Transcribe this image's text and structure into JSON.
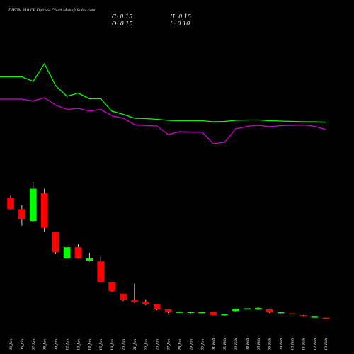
{
  "chart_data": {
    "type": "candlestick",
    "title": "DIXON 310 CE Options Chart MunafaSutra.com",
    "ohlc_readout": {
      "C": "0.15",
      "H": "0.15",
      "O": "0.15",
      "L": "0.10"
    },
    "categories": [
      "03 Jan",
      "06 Jan",
      "07 Jan",
      "08 Jan",
      "09 Jan",
      "12 Jan",
      "13 Jan",
      "14 Jan",
      "15 Jan",
      "19 Jan",
      "20 Jan",
      "21 Jan",
      "22 Jan",
      "23 Jan",
      "27 Jan",
      "28 Jan",
      "29 Jan",
      "30 Jan",
      "01 Feb",
      "02 Feb",
      "03 Feb",
      "04 Feb",
      "05 Feb",
      "06 Feb",
      "09 Feb",
      "10 Feb",
      "11 Feb",
      "12 Feb",
      "13 Feb"
    ],
    "candles": [
      {
        "o": 59.4,
        "h": 60.6,
        "l": 53.8,
        "c": 54.2,
        "dir": "down"
      },
      {
        "o": 54.2,
        "h": 56.0,
        "l": 46.4,
        "c": 49.5,
        "dir": "down"
      },
      {
        "o": 48.6,
        "h": 67.0,
        "l": 48.4,
        "c": 63.8,
        "dir": "up"
      },
      {
        "o": 61.7,
        "h": 63.8,
        "l": 43.3,
        "c": 45.4,
        "dir": "down"
      },
      {
        "o": 43.3,
        "h": 43.3,
        "l": 33.0,
        "c": 33.9,
        "dir": "down"
      },
      {
        "o": 31.0,
        "h": 37.2,
        "l": 28.4,
        "c": 36.3,
        "dir": "up"
      },
      {
        "o": 36.3,
        "h": 37.8,
        "l": 30.9,
        "c": 31.1,
        "dir": "down"
      },
      {
        "o": 30.0,
        "h": 33.6,
        "l": 29.6,
        "c": 31.0,
        "dir": "up"
      },
      {
        "o": 29.6,
        "h": 31.9,
        "l": 19.7,
        "c": 19.9,
        "dir": "down"
      },
      {
        "o": 19.7,
        "h": 19.7,
        "l": 15.3,
        "c": 15.6,
        "dir": "down"
      },
      {
        "o": 14.4,
        "h": 14.4,
        "l": 10.9,
        "c": 11.3,
        "dir": "down"
      },
      {
        "o": 11.3,
        "h": 19.1,
        "l": 10.1,
        "c": 10.6,
        "dir": "down"
      },
      {
        "o": 10.6,
        "h": 11.5,
        "l": 9.0,
        "c": 9.4,
        "dir": "down"
      },
      {
        "o": 9.4,
        "h": 9.4,
        "l": 6.6,
        "c": 7.0,
        "dir": "down"
      },
      {
        "o": 7.0,
        "h": 7.1,
        "l": 5.3,
        "c": 5.7,
        "dir": "down"
      },
      {
        "o": 5.4,
        "h": 6.1,
        "l": 5.3,
        "c": 6.0,
        "dir": "up"
      },
      {
        "o": 5.3,
        "h": 5.9,
        "l": 5.1,
        "c": 5.8,
        "dir": "up"
      },
      {
        "o": 5.2,
        "h": 5.9,
        "l": 5.1,
        "c": 5.8,
        "dir": "up"
      },
      {
        "o": 5.8,
        "h": 5.9,
        "l": 4.2,
        "c": 4.3,
        "dir": "down"
      },
      {
        "o": 4.3,
        "h": 4.9,
        "l": 4.1,
        "c": 4.7,
        "dir": "up"
      },
      {
        "o": 6.2,
        "h": 7.4,
        "l": 5.9,
        "c": 7.3,
        "dir": "up"
      },
      {
        "o": 7.2,
        "h": 7.6,
        "l": 7.0,
        "c": 7.5,
        "dir": "up"
      },
      {
        "o": 6.9,
        "h": 8.1,
        "l": 6.8,
        "c": 7.7,
        "dir": "up"
      },
      {
        "o": 7.0,
        "h": 7.2,
        "l": 5.3,
        "c": 5.7,
        "dir": "down"
      },
      {
        "o": 5.4,
        "h": 5.8,
        "l": 5.1,
        "c": 5.7,
        "dir": "up"
      },
      {
        "o": 5.1,
        "h": 5.3,
        "l": 4.5,
        "c": 4.7,
        "dir": "down"
      },
      {
        "o": 4.3,
        "h": 4.4,
        "l": 3.6,
        "c": 3.9,
        "dir": "down"
      },
      {
        "o": 3.4,
        "h": 3.7,
        "l": 3.3,
        "c": 3.6,
        "dir": "up"
      },
      {
        "o": 3.1,
        "h": 3.2,
        "l": 2.8,
        "c": 3.0,
        "dir": "down"
      }
    ],
    "overlay_lines": [
      {
        "color": "#00ff00",
        "values": [
          171.5,
          171.5,
          165.0,
          190.0,
          159.0,
          144.0,
          148.5,
          140.5,
          140.5,
          123.0,
          118.5,
          113.0,
          112.5,
          111.5,
          110.0,
          109.5,
          109.5,
          109.5,
          108.0,
          108.5,
          110.0,
          110.5,
          110.5,
          109.5,
          109.0,
          108.5,
          108.0,
          108.0,
          107.5
        ]
      },
      {
        "color": "#cc00cc",
        "values": [
          140.0,
          140.0,
          137.5,
          142.0,
          131.5,
          125.5,
          127.0,
          123.0,
          125.5,
          116.5,
          113.0,
          104.0,
          102.5,
          102.0,
          90.0,
          94.0,
          93.5,
          93.5,
          77.0,
          79.0,
          98.0,
          101.5,
          103.0,
          101.0,
          102.5,
          103.0,
          103.5,
          101.5,
          97.0
        ]
      }
    ],
    "colors": {
      "up": "#00ff00",
      "down": "#ff0000",
      "background": "#000000",
      "wick": "#ffffff"
    },
    "grid": false
  }
}
